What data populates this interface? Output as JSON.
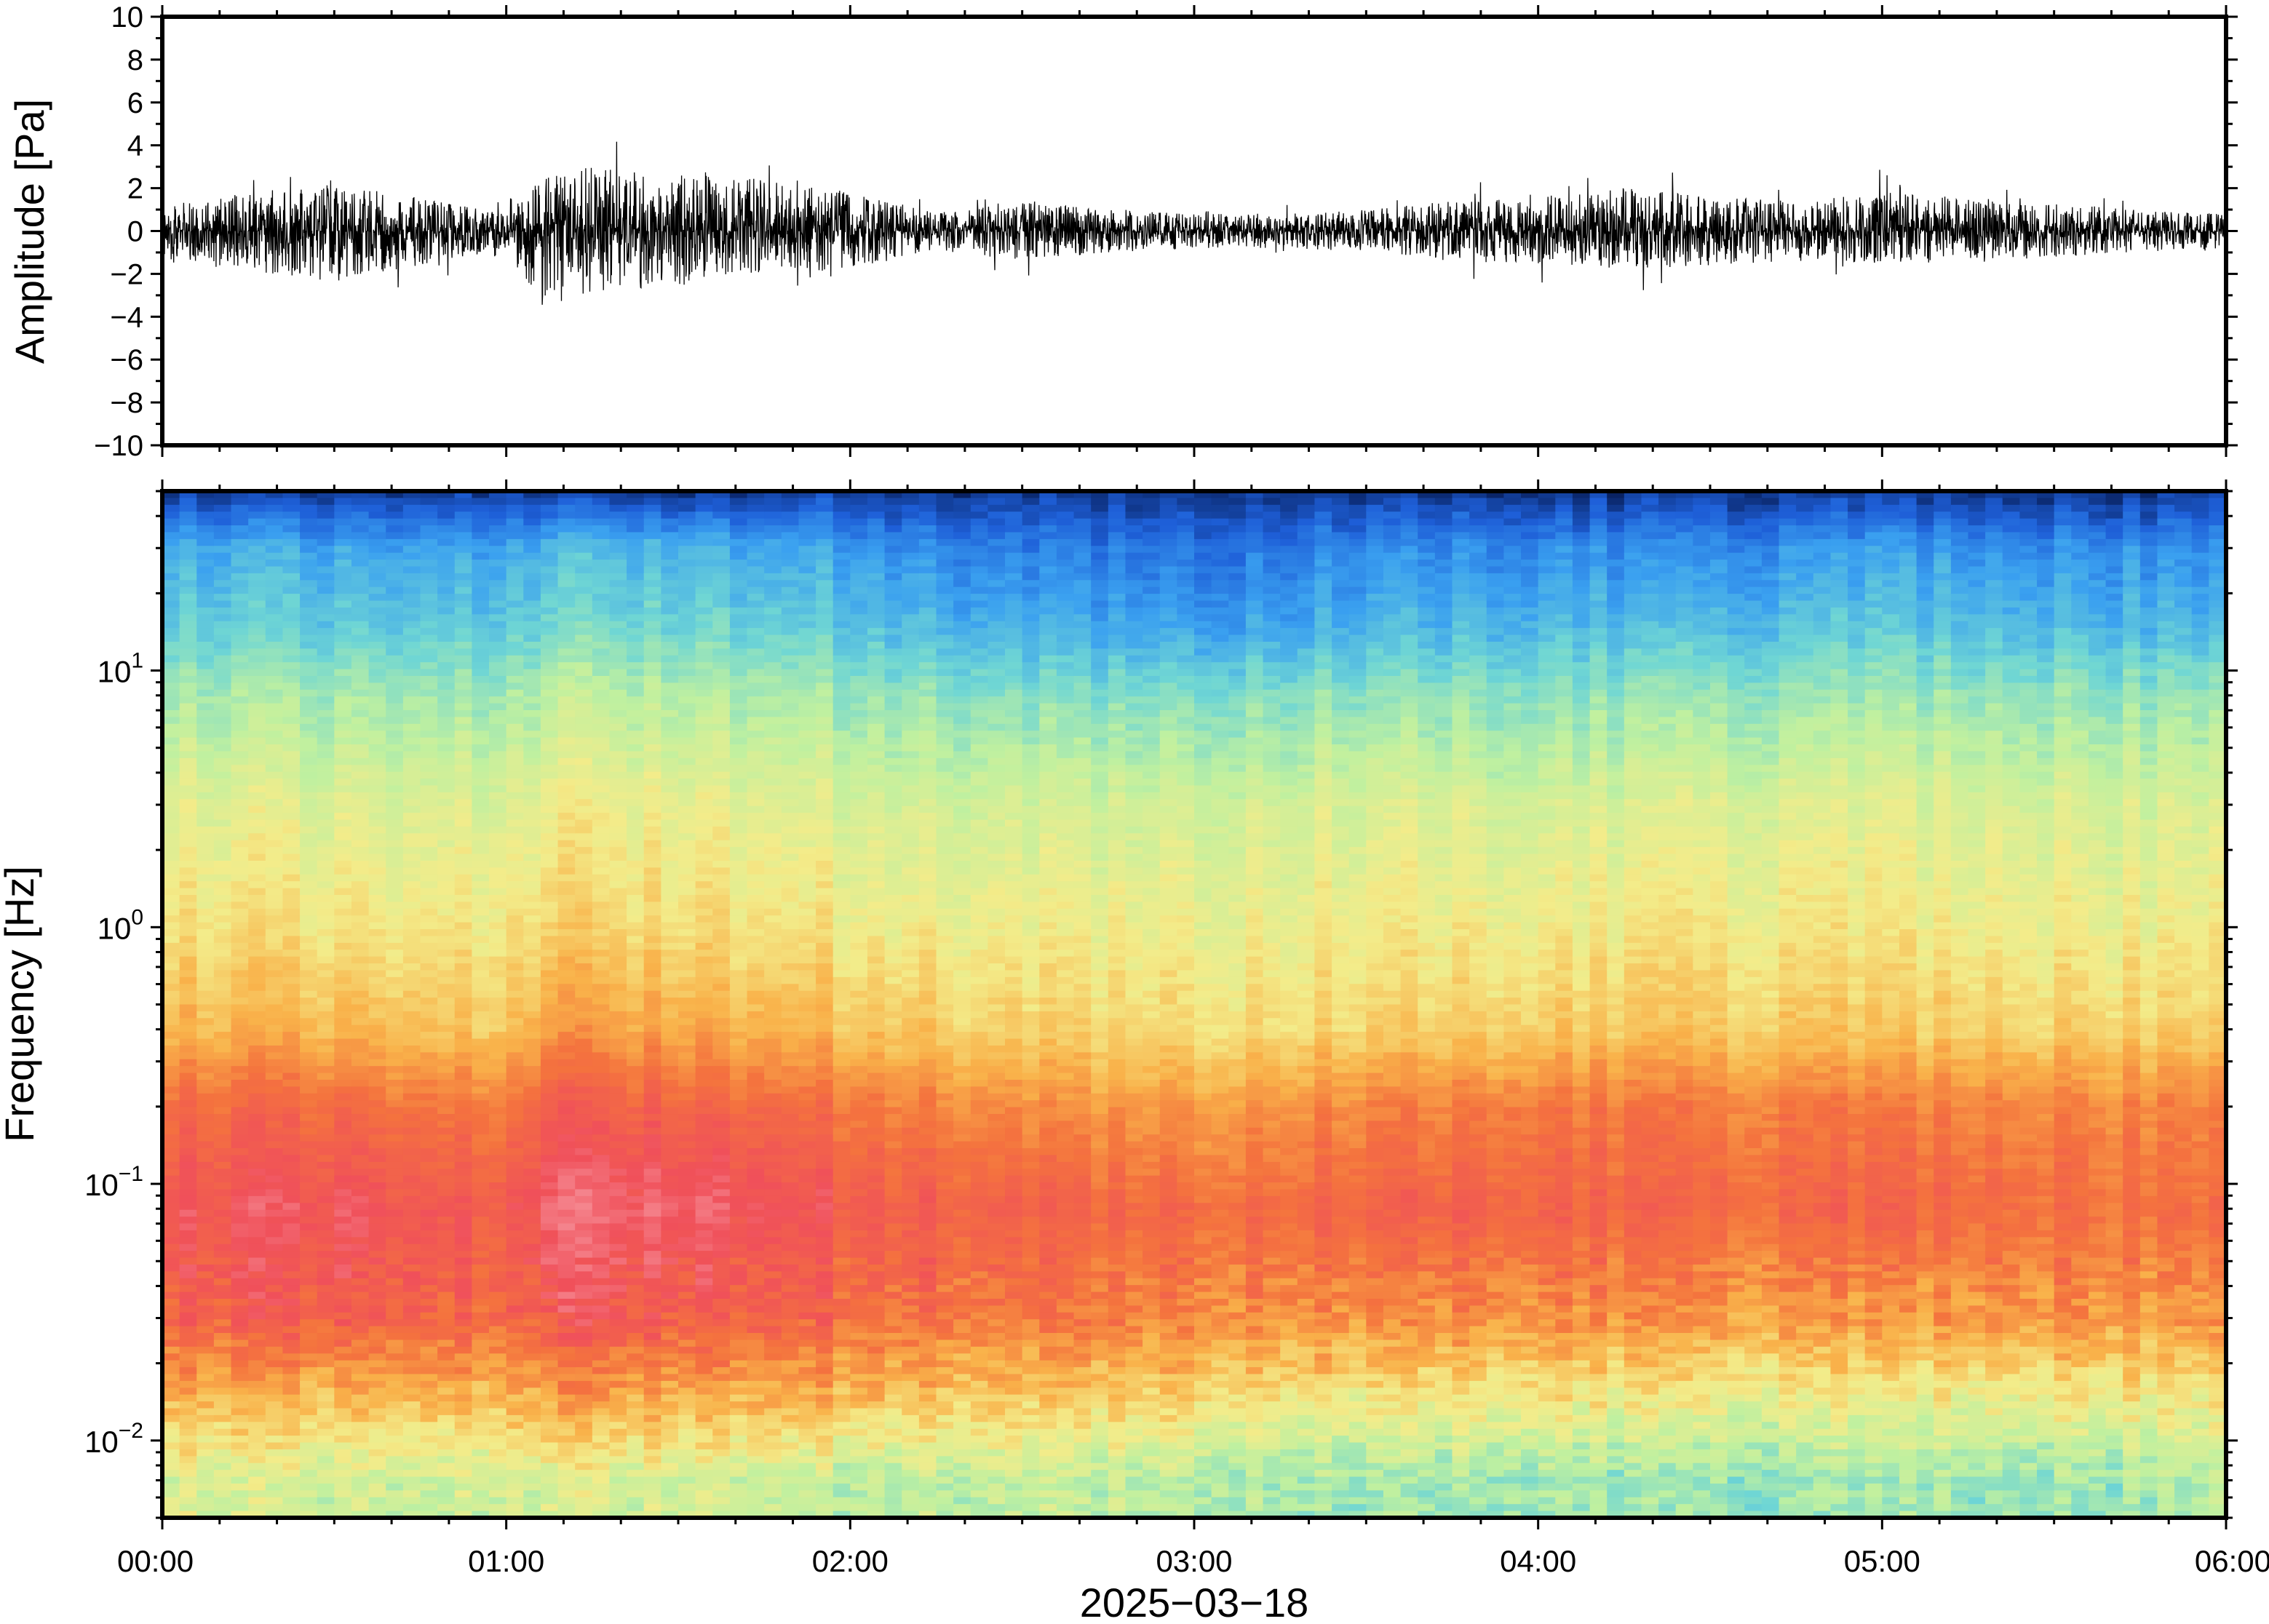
{
  "chart_data": [
    {
      "type": "line",
      "ylabel": "Amplitude [Pa]",
      "ylim": [
        -10,
        10
      ],
      "yticks": [
        "10",
        "8",
        "6",
        "4",
        "2",
        "0",
        "−2",
        "−4",
        "−6",
        "−8",
        "−10"
      ],
      "xlim": [
        "00:00",
        "06:00"
      ],
      "series": [
        {
          "color": "#000000",
          "envelope": {
            "x_hours": [
              0.0,
              0.25,
              0.5,
              0.75,
              1.0,
              1.1,
              1.25,
              1.5,
              1.75,
              2.0,
              2.25,
              2.5,
              2.75,
              3.0,
              3.25,
              3.5,
              3.75,
              4.0,
              4.25,
              4.5,
              4.75,
              5.0,
              5.25,
              5.5,
              5.75,
              6.0
            ],
            "y_max": [
              1.2,
              1.8,
              2.2,
              1.6,
              0.8,
              2.6,
              3.0,
              2.7,
              2.5,
              1.8,
              0.9,
              1.5,
              1.0,
              0.8,
              0.8,
              1.0,
              1.4,
              1.6,
              2.0,
              1.6,
              1.4,
              1.8,
              1.6,
              1.3,
              1.0,
              0.8
            ],
            "y_min": [
              -1.4,
              -2.0,
              -2.4,
              -1.6,
              -0.8,
              -3.6,
              -2.8,
              -2.6,
              -2.0,
              -1.8,
              -0.9,
              -1.4,
              -1.0,
              -0.8,
              -0.8,
              -1.0,
              -1.4,
              -1.6,
              -1.8,
              -1.6,
              -1.4,
              -1.6,
              -1.5,
              -1.2,
              -1.0,
              -0.8
            ]
          }
        }
      ]
    },
    {
      "type": "heatmap",
      "ylabel": "Frequency [Hz]",
      "xlabel": "2025−03−18",
      "yscale": "log",
      "ylim": [
        0.005,
        50
      ],
      "yticks": [
        {
          "value": 10,
          "base": "10",
          "exp": "1"
        },
        {
          "value": 1,
          "base": "10",
          "exp": "0"
        },
        {
          "value": 0.1,
          "base": "10",
          "exp": "−1"
        },
        {
          "value": 0.01,
          "base": "10",
          "exp": "−2"
        }
      ],
      "xticks": [
        "00:00",
        "01:00",
        "02:00",
        "03:00",
        "04:00",
        "05:00",
        "06:00"
      ],
      "xlim_hours": [
        0,
        6
      ],
      "colormap": [
        "#08205e",
        "#1e5fd8",
        "#3aa0f0",
        "#6fd6d4",
        "#bff0a0",
        "#f3ec8a",
        "#f9b24a",
        "#f4733e",
        "#f0505a",
        "#f7a0a8"
      ],
      "time_bins_hours": [
        0.0,
        0.5,
        1.0,
        1.1,
        1.5,
        2.0,
        2.5,
        3.0,
        3.5,
        4.0,
        4.5,
        5.0,
        5.5,
        6.0
      ],
      "power_profile": {
        "freq_hz": [
          50,
          30,
          15,
          8,
          3,
          1,
          0.4,
          0.2,
          0.08,
          0.03,
          0.015,
          0.007
        ],
        "level_by_time": [
          [
            0.05,
            0.25,
            0.32,
            0.42,
            0.52,
            0.58,
            0.66,
            0.8,
            0.88,
            0.82,
            0.68,
            0.5
          ],
          [
            0.05,
            0.24,
            0.31,
            0.41,
            0.51,
            0.57,
            0.66,
            0.8,
            0.9,
            0.84,
            0.66,
            0.48
          ],
          [
            0.05,
            0.22,
            0.3,
            0.4,
            0.5,
            0.56,
            0.62,
            0.76,
            0.84,
            0.8,
            0.65,
            0.48
          ],
          [
            0.05,
            0.27,
            0.34,
            0.44,
            0.54,
            0.6,
            0.7,
            0.84,
            0.92,
            0.86,
            0.7,
            0.5
          ],
          [
            0.05,
            0.28,
            0.35,
            0.45,
            0.55,
            0.6,
            0.7,
            0.84,
            0.93,
            0.86,
            0.7,
            0.5
          ],
          [
            0.05,
            0.22,
            0.3,
            0.4,
            0.5,
            0.56,
            0.64,
            0.78,
            0.86,
            0.8,
            0.66,
            0.45
          ],
          [
            0.04,
            0.16,
            0.24,
            0.36,
            0.48,
            0.54,
            0.6,
            0.72,
            0.82,
            0.76,
            0.62,
            0.45
          ],
          [
            0.04,
            0.14,
            0.22,
            0.36,
            0.48,
            0.54,
            0.58,
            0.7,
            0.8,
            0.74,
            0.6,
            0.44
          ],
          [
            0.04,
            0.18,
            0.26,
            0.38,
            0.5,
            0.55,
            0.6,
            0.74,
            0.82,
            0.72,
            0.56,
            0.4
          ],
          [
            0.04,
            0.2,
            0.28,
            0.39,
            0.5,
            0.56,
            0.63,
            0.78,
            0.84,
            0.74,
            0.58,
            0.42
          ],
          [
            0.04,
            0.18,
            0.27,
            0.38,
            0.5,
            0.56,
            0.62,
            0.76,
            0.8,
            0.7,
            0.54,
            0.38
          ],
          [
            0.04,
            0.22,
            0.3,
            0.4,
            0.51,
            0.56,
            0.62,
            0.76,
            0.82,
            0.7,
            0.54,
            0.4
          ],
          [
            0.04,
            0.2,
            0.28,
            0.39,
            0.5,
            0.55,
            0.61,
            0.75,
            0.8,
            0.72,
            0.56,
            0.4
          ],
          [
            0.04,
            0.18,
            0.26,
            0.38,
            0.49,
            0.54,
            0.6,
            0.74,
            0.78,
            0.7,
            0.56,
            0.42
          ]
        ]
      }
    }
  ]
}
